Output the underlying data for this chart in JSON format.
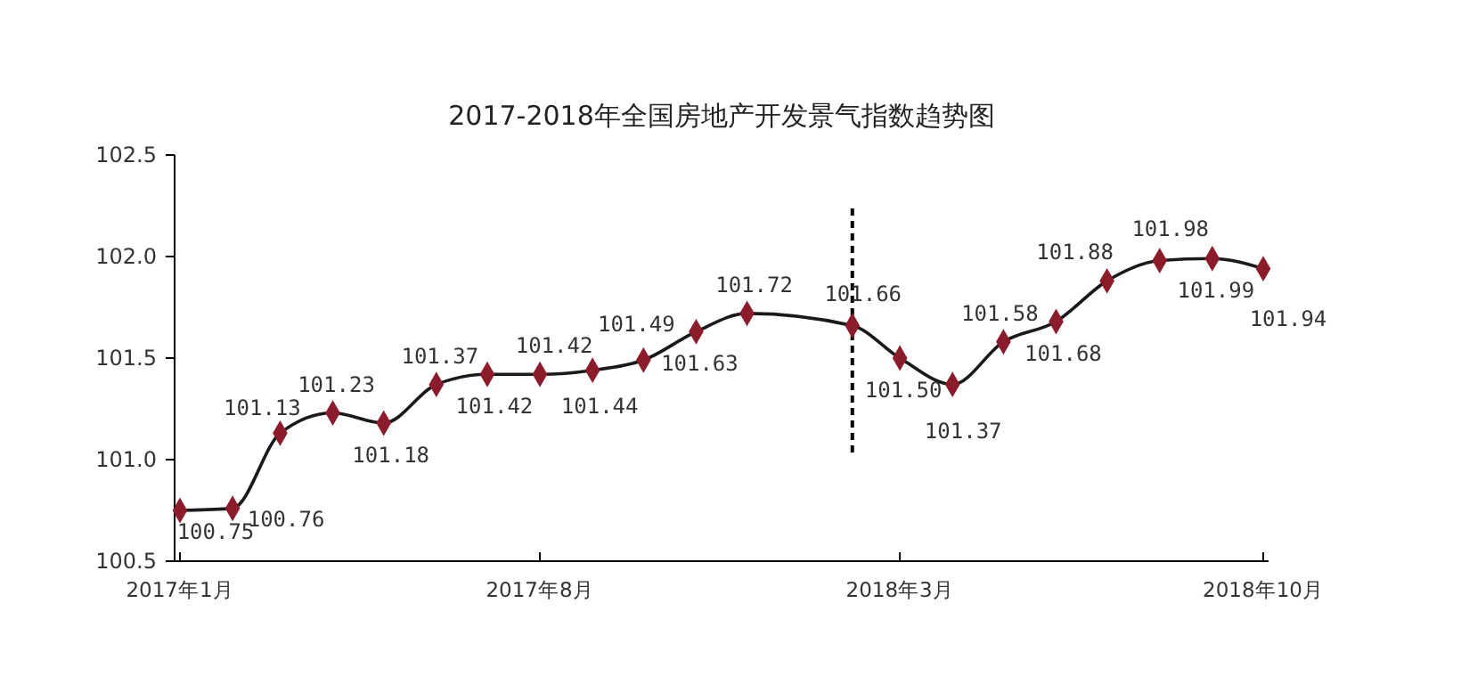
{
  "chart_data": {
    "type": "line",
    "title": "2017-2018年全国房地产开发景气指数趋势图",
    "x": [
      "2017-01",
      "2017-02",
      "2017-03",
      "2017-04",
      "2017-05",
      "2017-06",
      "2017-07",
      "2017-08",
      "2017-09",
      "2017-10",
      "2017-11",
      "2017-12",
      "2018-01",
      "2018-02",
      "2018-03",
      "2018-04",
      "2018-05",
      "2018-06",
      "2018-07",
      "2018-08",
      "2018-09",
      "2018-10"
    ],
    "series": [
      {
        "color": "#8b1c2c",
        "values": [
          100.75,
          100.76,
          101.13,
          101.23,
          101.18,
          101.37,
          101.42,
          101.42,
          101.44,
          101.49,
          101.63,
          101.72,
          null,
          101.66,
          101.5,
          101.37,
          101.58,
          101.68,
          101.88,
          101.98,
          101.99,
          101.94
        ]
      }
    ],
    "xlim": [
      "2017-01",
      "2018-10"
    ],
    "xticks": [
      {
        "value": "2017-01",
        "label": "2017年1月"
      },
      {
        "value": "2017-08",
        "label": "2017年8月"
      },
      {
        "value": "2018-03",
        "label": "2018年3月"
      },
      {
        "value": "2018-10",
        "label": "2018年10月"
      }
    ],
    "value_labels": [
      "100.75",
      "100.76",
      "101.13",
      "101.23",
      "101.18",
      "101.37",
      "101.42",
      "101.42",
      "101.44",
      "101.49",
      "101.63",
      "101.72",
      null,
      "101.66",
      "101.50",
      "101.37",
      "101.58",
      "101.68",
      "101.88",
      "101.98",
      "101.99",
      "101.94"
    ],
    "ylim": [
      100.5,
      102.5
    ],
    "yticks": [
      100.5,
      {
        "value": 101,
        "label": "101.0"
      },
      101.5,
      {
        "value": 102,
        "label": "102.0"
      },
      102.5
    ],
    "ref_lines": [
      {
        "axis": "x",
        "value": "2018-02",
        "line_style": "dashed",
        "color": "#000000"
      }
    ],
    "marker": "diamond",
    "grid": false
  }
}
